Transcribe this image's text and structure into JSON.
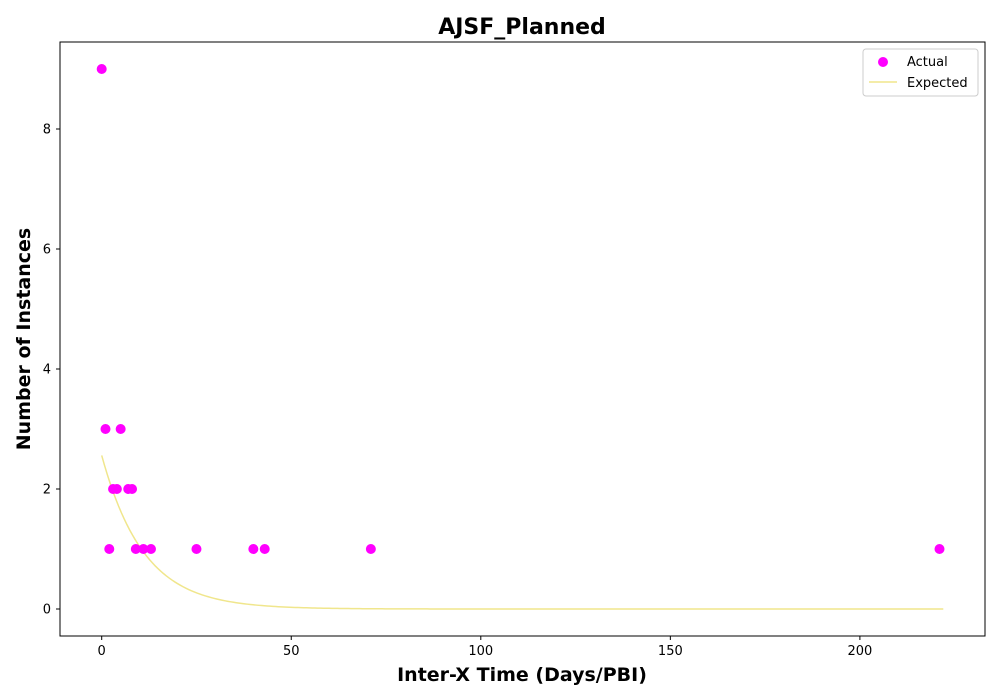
{
  "chart_data": {
    "type": "scatter",
    "title": "AJSF_Planned",
    "xlabel": "Inter-X Time (Days/PBI)",
    "ylabel": "Number of Instances",
    "xlim": [
      -11,
      233
    ],
    "ylim": [
      -0.45,
      9.45
    ],
    "xticks": [
      0,
      50,
      100,
      150,
      200
    ],
    "yticks": [
      0,
      2,
      4,
      6,
      8
    ],
    "grid": false,
    "legend_position": "top-right",
    "series": [
      {
        "name": "Actual",
        "kind": "scatter",
        "color": "#ff00ff",
        "x": [
          0,
          1,
          2,
          3,
          4,
          5,
          7,
          8,
          9,
          11,
          13,
          25,
          40,
          43,
          71,
          221
        ],
        "y": [
          9,
          3,
          1,
          2,
          2,
          3,
          2,
          2,
          1,
          1,
          1,
          1,
          1,
          1,
          1,
          1
        ]
      },
      {
        "name": "Expected",
        "kind": "line",
        "color": "#f0e68c",
        "model": "exponential",
        "amplitude": 2.56,
        "decay_rate": 0.09,
        "x_start": 0,
        "x_end": 222
      }
    ]
  }
}
